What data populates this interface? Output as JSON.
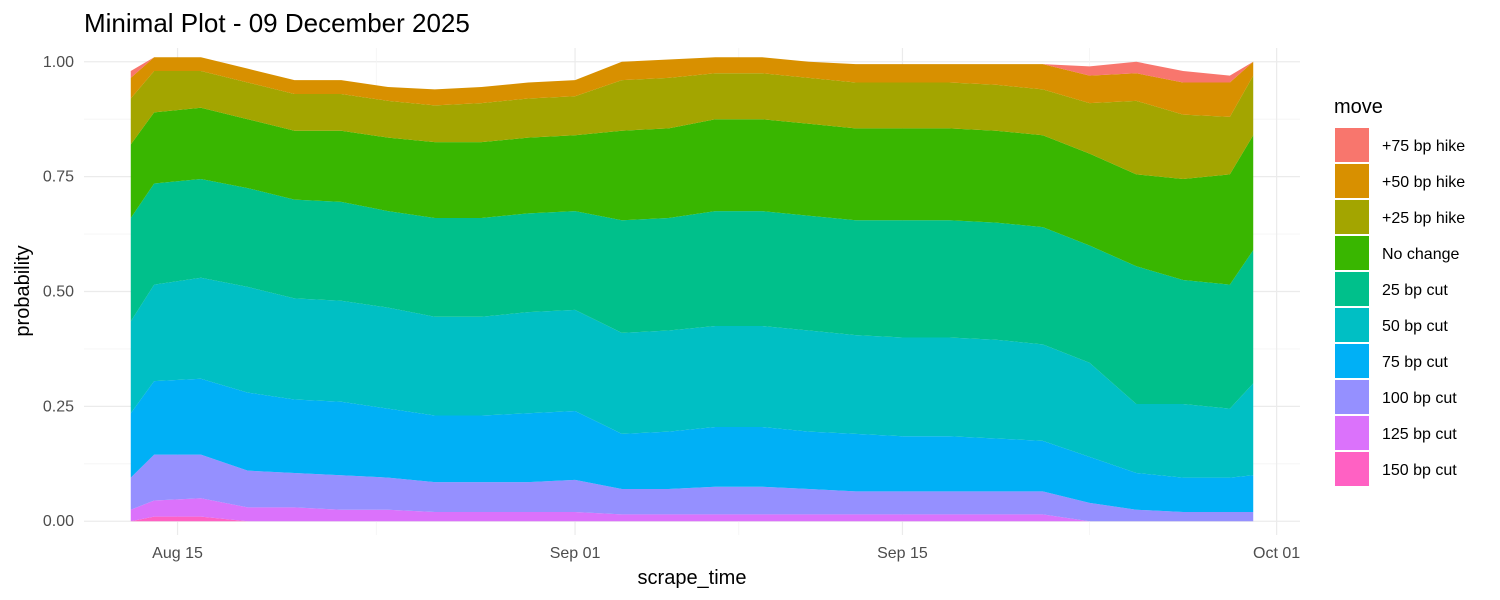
{
  "chart_data": {
    "type": "area",
    "stacked": true,
    "title": "Minimal Plot - 09 December 2025",
    "xlabel": "scrape_time",
    "ylabel": "probability",
    "xlim": [
      "2025-08-11",
      "2025-10-02"
    ],
    "ylim": [
      -0.03,
      1.03
    ],
    "x_ticks": [
      {
        "date": "2025-08-15",
        "label": "Aug 15"
      },
      {
        "date": "2025-09-01",
        "label": "Sep 01"
      },
      {
        "date": "2025-09-15",
        "label": "Sep 15"
      },
      {
        "date": "2025-10-01",
        "label": "Oct 01"
      }
    ],
    "y_ticks": [
      {
        "value": 0,
        "label": "0.00"
      },
      {
        "value": 0.25,
        "label": "0.25"
      },
      {
        "value": 0.5,
        "label": "0.50"
      },
      {
        "value": 0.75,
        "label": "0.75"
      },
      {
        "value": 1,
        "label": "1.00"
      }
    ],
    "grid": true,
    "legend": {
      "title": "move",
      "position": "right"
    },
    "x": [
      "2025-08-13",
      "2025-08-14",
      "2025-08-16",
      "2025-08-18",
      "2025-08-20",
      "2025-08-22",
      "2025-08-24",
      "2025-08-26",
      "2025-08-28",
      "2025-08-30",
      "2025-09-01",
      "2025-09-03",
      "2025-09-05",
      "2025-09-07",
      "2025-09-09",
      "2025-09-11",
      "2025-09-13",
      "2025-09-15",
      "2025-09-17",
      "2025-09-19",
      "2025-09-21",
      "2025-09-23",
      "2025-09-25",
      "2025-09-27",
      "2025-09-29",
      "2025-09-30"
    ],
    "series": [
      {
        "name": "150 bp cut",
        "color": "#FF61C3",
        "values": [
          0,
          0.01,
          0.01,
          0,
          0,
          0,
          0,
          0,
          0,
          0,
          0,
          0,
          0,
          0,
          0,
          0,
          0,
          0,
          0,
          0,
          0,
          0,
          0,
          0,
          0,
          0
        ]
      },
      {
        "name": "125 bp cut",
        "color": "#DB72FB",
        "values": [
          0.025,
          0.035,
          0.04,
          0.03,
          0.03,
          0.025,
          0.025,
          0.02,
          0.02,
          0.02,
          0.02,
          0.015,
          0.015,
          0.015,
          0.015,
          0.015,
          0.015,
          0.015,
          0.015,
          0.015,
          0.015,
          0,
          0,
          0,
          0,
          0
        ]
      },
      {
        "name": "100 bp cut",
        "color": "#9590FF",
        "values": [
          0.07,
          0.1,
          0.095,
          0.08,
          0.075,
          0.075,
          0.07,
          0.065,
          0.065,
          0.065,
          0.07,
          0.055,
          0.055,
          0.06,
          0.06,
          0.055,
          0.05,
          0.05,
          0.05,
          0.05,
          0.05,
          0.04,
          0.025,
          0.02,
          0.02,
          0.02
        ]
      },
      {
        "name": "75 bp cut",
        "color": "#00B0F6",
        "values": [
          0.14,
          0.16,
          0.165,
          0.17,
          0.16,
          0.16,
          0.15,
          0.145,
          0.145,
          0.15,
          0.15,
          0.12,
          0.125,
          0.13,
          0.13,
          0.125,
          0.125,
          0.12,
          0.12,
          0.115,
          0.11,
          0.1,
          0.08,
          0.075,
          0.075,
          0.08
        ]
      },
      {
        "name": "50 bp cut",
        "color": "#00BFC4",
        "values": [
          0.2,
          0.21,
          0.22,
          0.23,
          0.22,
          0.22,
          0.22,
          0.215,
          0.215,
          0.22,
          0.22,
          0.22,
          0.22,
          0.22,
          0.22,
          0.22,
          0.215,
          0.215,
          0.215,
          0.215,
          0.21,
          0.205,
          0.15,
          0.16,
          0.15,
          0.2
        ]
      },
      {
        "name": "25 bp cut",
        "color": "#00C08B",
        "values": [
          0.225,
          0.22,
          0.215,
          0.215,
          0.215,
          0.215,
          0.21,
          0.215,
          0.215,
          0.215,
          0.215,
          0.245,
          0.245,
          0.25,
          0.25,
          0.25,
          0.25,
          0.255,
          0.255,
          0.255,
          0.255,
          0.255,
          0.3,
          0.27,
          0.27,
          0.29
        ]
      },
      {
        "name": "No change",
        "color": "#39B600",
        "values": [
          0.16,
          0.155,
          0.155,
          0.15,
          0.15,
          0.155,
          0.16,
          0.165,
          0.165,
          0.165,
          0.165,
          0.195,
          0.195,
          0.2,
          0.2,
          0.2,
          0.2,
          0.2,
          0.2,
          0.2,
          0.2,
          0.2,
          0.2,
          0.22,
          0.24,
          0.25
        ]
      },
      {
        "name": "+25 bp hike",
        "color": "#A3A500",
        "values": [
          0.1,
          0.09,
          0.08,
          0.08,
          0.08,
          0.08,
          0.08,
          0.08,
          0.085,
          0.085,
          0.085,
          0.11,
          0.11,
          0.1,
          0.1,
          0.1,
          0.1,
          0.1,
          0.1,
          0.1,
          0.1,
          0.11,
          0.16,
          0.14,
          0.125,
          0.13
        ]
      },
      {
        "name": "+50 bp hike",
        "color": "#D89000",
        "values": [
          0.045,
          0.03,
          0.03,
          0.03,
          0.03,
          0.03,
          0.03,
          0.035,
          0.035,
          0.035,
          0.035,
          0.04,
          0.04,
          0.035,
          0.035,
          0.035,
          0.04,
          0.04,
          0.04,
          0.045,
          0.055,
          0.06,
          0.06,
          0.07,
          0.075,
          0.03
        ]
      },
      {
        "name": "+75 bp hike",
        "color": "#F8766D",
        "values": [
          0.015,
          0,
          0,
          0,
          0,
          0,
          0,
          0,
          0,
          0,
          0,
          0,
          0,
          0,
          0,
          0,
          0,
          0,
          0,
          0,
          0,
          0.02,
          0.025,
          0.025,
          0.015,
          0
        ]
      }
    ]
  }
}
